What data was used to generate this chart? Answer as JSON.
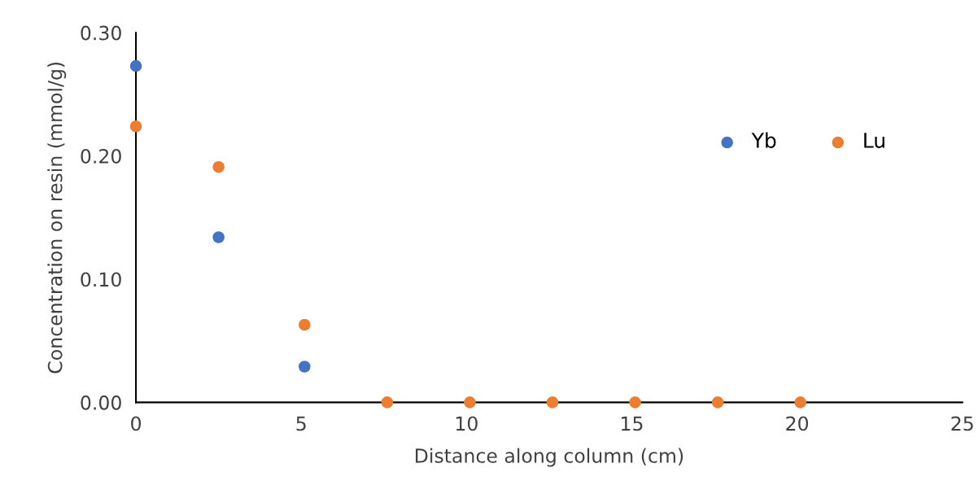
{
  "chart_data": {
    "type": "scatter",
    "xlabel": "Distance along column (cm)",
    "ylabel": "Concentration on resin (mmol/g)",
    "x": [
      0,
      2.5,
      5.1,
      7.6,
      10.1,
      12.6,
      15.1,
      17.6,
      20.1
    ],
    "series": [
      {
        "name": "Yb",
        "color": "#4472c4",
        "values": [
          0.273,
          0.134,
          0.029,
          null,
          null,
          null,
          null,
          null,
          null
        ]
      },
      {
        "name": "Lu",
        "color": "#ed7d31",
        "values": [
          0.224,
          0.191,
          0.063,
          0,
          0,
          0,
          0,
          0,
          0
        ]
      }
    ],
    "xlim": [
      0,
      25
    ],
    "xticks": [
      0,
      5,
      10,
      15,
      20,
      25
    ],
    "ylim": [
      0,
      0.3
    ],
    "yticks": [
      {
        "value": 0,
        "label": "0.00"
      },
      {
        "value": 0.1,
        "label": "0.10"
      },
      {
        "value": 0.2,
        "label": "0.20"
      },
      {
        "value": 0.3,
        "label": "0.30"
      }
    ],
    "grid": false,
    "legend": "top right",
    "marker": "circle"
  }
}
